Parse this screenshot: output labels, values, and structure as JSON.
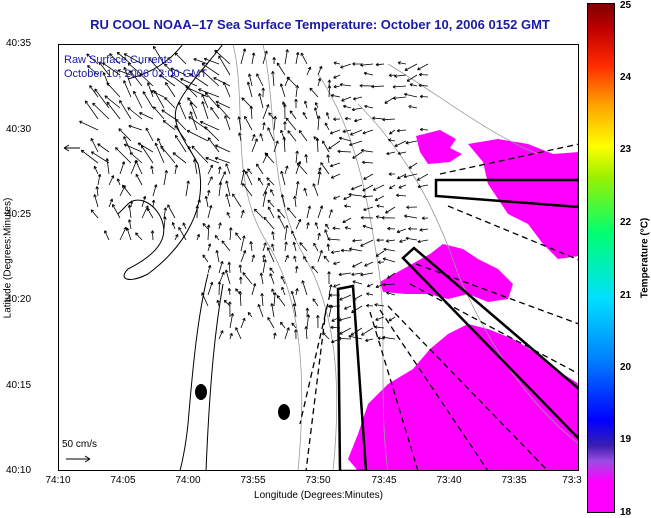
{
  "title": "RU COOL  NOAA–17  Sea Surface Temperature:  October 10, 2006 0152 GMT",
  "annotation": {
    "line1": "Raw Surface Currents",
    "line2": "October 10, 2006 02:00 GMT"
  },
  "scale_label": "50 cm/s",
  "axes": {
    "xlabel": "Longitude (Degrees:Minutes)",
    "ylabel": "Latitude (Degrees:Minutes)",
    "x_ticks": [
      "74:10",
      "74:05",
      "74:00",
      "73:55",
      "73:50",
      "73:45",
      "73:40",
      "73:35",
      "73:3"
    ],
    "y_ticks": [
      "40:35",
      "40:30",
      "40:25",
      "40:20",
      "40:15",
      "40:10"
    ]
  },
  "colorbar": {
    "label": "Temperature (°C)",
    "ticks": [
      "25",
      "24",
      "23",
      "22",
      "21",
      "20",
      "19",
      "18"
    ],
    "min": 18,
    "max": 25
  },
  "colors": {
    "sst_patch": "#ff00ff",
    "coast": "#000000",
    "contour": "#999999",
    "title": "#1a1aa8"
  }
}
